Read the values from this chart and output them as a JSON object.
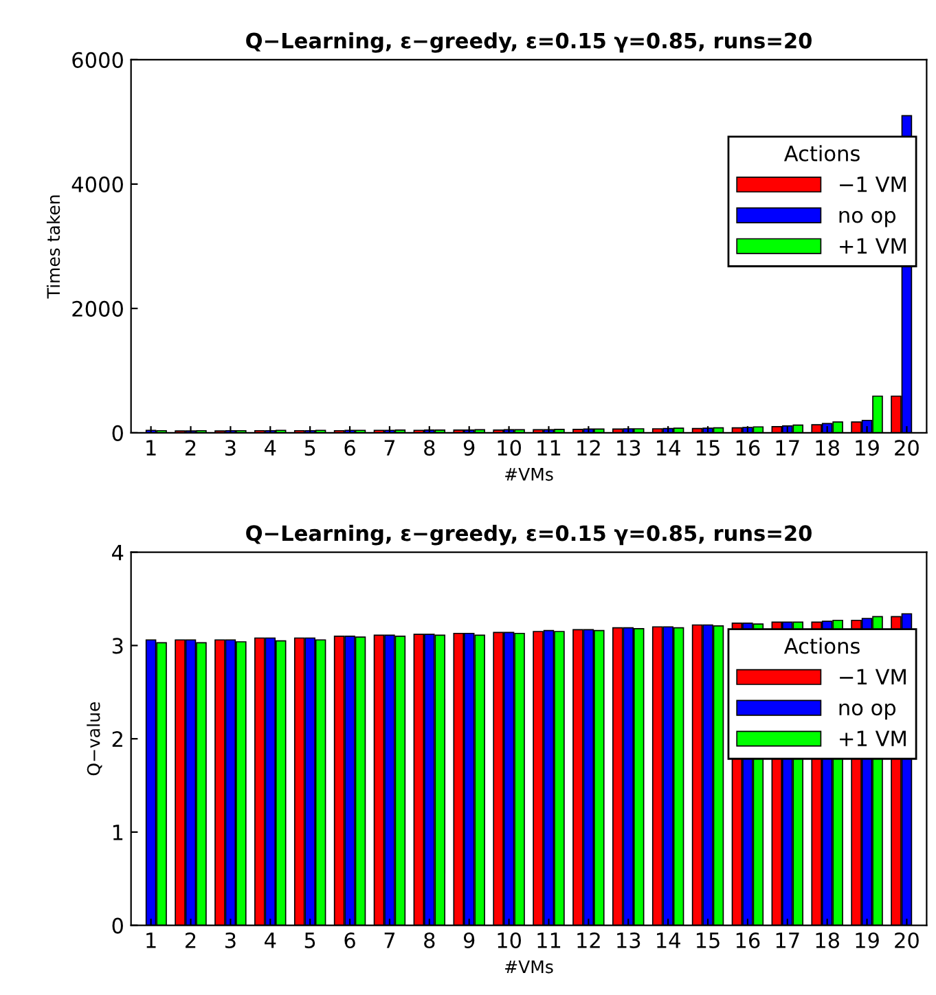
{
  "chart_data": [
    {
      "type": "bar",
      "title": "Q−Learning, ε−greedy, ε=0.15 γ=0.85, runs=20",
      "xlabel": "#VMs",
      "ylabel": "Times taken",
      "legend_title": "Actions",
      "legend": "right",
      "categories": [
        "1",
        "2",
        "3",
        "4",
        "5",
        "6",
        "7",
        "8",
        "9",
        "10",
        "11",
        "12",
        "13",
        "14",
        "15",
        "16",
        "17",
        "18",
        "19",
        "20"
      ],
      "series": [
        {
          "name": "−1 VM",
          "color": "#ff0000",
          "values": [
            null,
            30,
            30,
            35,
            35,
            35,
            40,
            40,
            45,
            45,
            50,
            55,
            60,
            65,
            70,
            80,
            100,
            130,
            175,
            590
          ]
        },
        {
          "name": "no op",
          "color": "#0000ff",
          "values": [
            40,
            30,
            35,
            35,
            35,
            40,
            40,
            45,
            45,
            50,
            50,
            60,
            65,
            70,
            75,
            85,
            110,
            150,
            200,
            5100
          ]
        },
        {
          "name": "+1 VM",
          "color": "#00ff00",
          "values": [
            35,
            35,
            35,
            40,
            40,
            40,
            45,
            45,
            50,
            50,
            55,
            60,
            65,
            75,
            80,
            95,
            125,
            175,
            590,
            null
          ]
        }
      ],
      "ylim": [
        0,
        6000
      ],
      "yticks": [
        0,
        2000,
        4000,
        6000
      ]
    },
    {
      "type": "bar",
      "title": "Q−Learning, ε−greedy, ε=0.15 γ=0.85, runs=20",
      "xlabel": "#VMs",
      "ylabel": "Q−value",
      "legend_title": "Actions",
      "legend": "right",
      "categories": [
        "1",
        "2",
        "3",
        "4",
        "5",
        "6",
        "7",
        "8",
        "9",
        "10",
        "11",
        "12",
        "13",
        "14",
        "15",
        "16",
        "17",
        "18",
        "19",
        "20"
      ],
      "series": [
        {
          "name": "−1 VM",
          "color": "#ff0000",
          "values": [
            null,
            3.06,
            3.06,
            3.08,
            3.08,
            3.1,
            3.11,
            3.12,
            3.13,
            3.14,
            3.15,
            3.17,
            3.19,
            3.2,
            3.22,
            3.24,
            3.25,
            3.25,
            3.27,
            3.31
          ]
        },
        {
          "name": "no op",
          "color": "#0000ff",
          "values": [
            3.06,
            3.06,
            3.06,
            3.08,
            3.08,
            3.1,
            3.11,
            3.12,
            3.13,
            3.14,
            3.16,
            3.17,
            3.19,
            3.2,
            3.22,
            3.24,
            3.25,
            3.26,
            3.29,
            3.34
          ]
        },
        {
          "name": "+1 VM",
          "color": "#00ff00",
          "values": [
            3.03,
            3.03,
            3.04,
            3.05,
            3.06,
            3.09,
            3.1,
            3.11,
            3.11,
            3.13,
            3.15,
            3.16,
            3.18,
            3.19,
            3.21,
            3.23,
            3.25,
            3.27,
            3.31,
            null
          ]
        }
      ],
      "ylim": [
        0,
        4
      ],
      "yticks": [
        0,
        1,
        2,
        3,
        4
      ]
    }
  ]
}
